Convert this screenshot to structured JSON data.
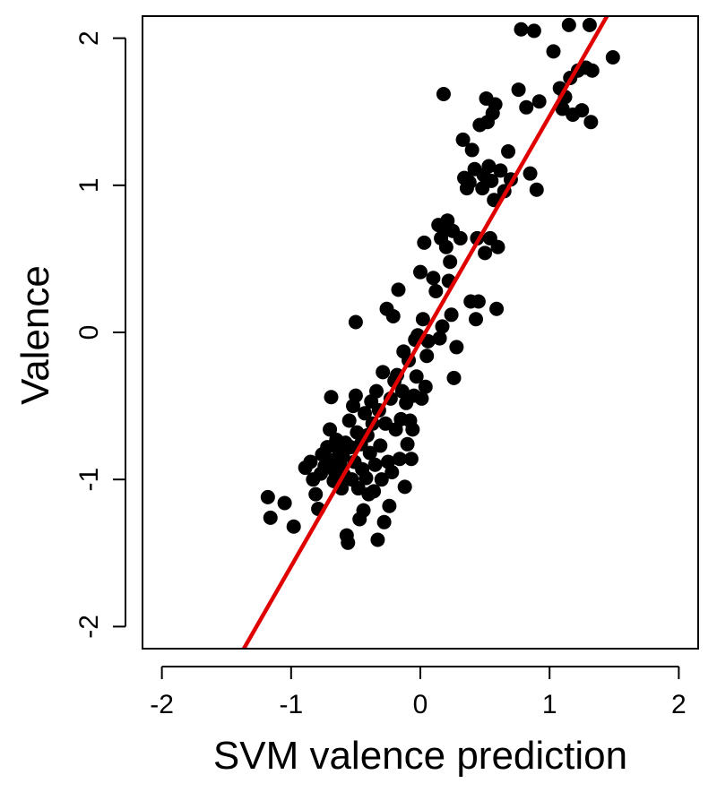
{
  "chart_data": {
    "type": "scatter",
    "xlabel": "SVM valence prediction",
    "ylabel": "Valence",
    "xlim": [
      -2.15,
      2.15
    ],
    "ylim": [
      -2.15,
      2.15
    ],
    "x_ticks": [
      -2,
      -1,
      0,
      1,
      2
    ],
    "y_ticks": [
      -2,
      -1,
      0,
      1,
      2
    ],
    "x_tick_labels": [
      "-2",
      "-1",
      "0",
      "1",
      "2"
    ],
    "y_tick_labels": [
      "-2",
      "-1",
      "0",
      "1",
      "2"
    ],
    "grid": false,
    "point_color": "#000000",
    "fit_line_color": "#e00000",
    "fit_line": {
      "slope": 1.53,
      "intercept": -0.06
    },
    "points": [
      {
        "x": -1.18,
        "y": -1.12
      },
      {
        "x": -1.16,
        "y": -1.26
      },
      {
        "x": -1.05,
        "y": -1.16
      },
      {
        "x": -0.98,
        "y": -1.32
      },
      {
        "x": -0.89,
        "y": -0.92
      },
      {
        "x": -0.85,
        "y": -0.88
      },
      {
        "x": -0.83,
        "y": -1.0
      },
      {
        "x": -0.81,
        "y": -1.1
      },
      {
        "x": -0.79,
        "y": -1.2
      },
      {
        "x": -0.77,
        "y": -0.96
      },
      {
        "x": -0.76,
        "y": -0.83
      },
      {
        "x": -0.74,
        "y": -0.91
      },
      {
        "x": -0.72,
        "y": -0.78
      },
      {
        "x": -0.7,
        "y": -0.66
      },
      {
        "x": -0.69,
        "y": -0.44
      },
      {
        "x": -0.68,
        "y": -0.87
      },
      {
        "x": -0.67,
        "y": -1.01
      },
      {
        "x": -0.66,
        "y": -0.95
      },
      {
        "x": -0.65,
        "y": -0.73
      },
      {
        "x": -0.63,
        "y": -0.8
      },
      {
        "x": -0.62,
        "y": -0.9
      },
      {
        "x": -0.61,
        "y": -1.06
      },
      {
        "x": -0.6,
        "y": -0.84
      },
      {
        "x": -0.59,
        "y": -0.97
      },
      {
        "x": -0.58,
        "y": -0.75
      },
      {
        "x": -0.57,
        "y": -1.38
      },
      {
        "x": -0.56,
        "y": -1.43
      },
      {
        "x": -0.55,
        "y": -0.6
      },
      {
        "x": -0.54,
        "y": -0.78
      },
      {
        "x": -0.53,
        "y": -1.0
      },
      {
        "x": -0.52,
        "y": -0.5
      },
      {
        "x": -0.51,
        "y": -0.88
      },
      {
        "x": -0.5,
        "y": 0.07
      },
      {
        "x": -0.5,
        "y": -0.43
      },
      {
        "x": -0.49,
        "y": -0.68
      },
      {
        "x": -0.48,
        "y": -1.06
      },
      {
        "x": -0.47,
        "y": -1.27
      },
      {
        "x": -0.46,
        "y": -0.76
      },
      {
        "x": -0.45,
        "y": -0.93
      },
      {
        "x": -0.44,
        "y": -1.21
      },
      {
        "x": -0.43,
        "y": -0.55
      },
      {
        "x": -0.42,
        "y": -0.99
      },
      {
        "x": -0.41,
        "y": -0.7
      },
      {
        "x": -0.4,
        "y": -1.1
      },
      {
        "x": -0.39,
        "y": -0.82
      },
      {
        "x": -0.38,
        "y": -0.47
      },
      {
        "x": -0.37,
        "y": -0.62
      },
      {
        "x": -0.36,
        "y": -1.08
      },
      {
        "x": -0.35,
        "y": -0.9
      },
      {
        "x": -0.34,
        "y": -0.4
      },
      {
        "x": -0.33,
        "y": -1.41
      },
      {
        "x": -0.32,
        "y": -0.53
      },
      {
        "x": -0.31,
        "y": -0.77
      },
      {
        "x": -0.3,
        "y": -1.0
      },
      {
        "x": -0.29,
        "y": -0.27
      },
      {
        "x": -0.28,
        "y": -1.29
      },
      {
        "x": -0.27,
        "y": -0.62
      },
      {
        "x": -0.26,
        "y": 0.16
      },
      {
        "x": -0.25,
        "y": -0.88
      },
      {
        "x": -0.24,
        "y": -1.18
      },
      {
        "x": -0.23,
        "y": -0.45
      },
      {
        "x": -0.22,
        "y": -0.95
      },
      {
        "x": -0.21,
        "y": 0.11
      },
      {
        "x": -0.2,
        "y": -0.33
      },
      {
        "x": -0.19,
        "y": -0.66
      },
      {
        "x": -0.18,
        "y": -0.29
      },
      {
        "x": -0.17,
        "y": 0.29
      },
      {
        "x": -0.16,
        "y": -0.86
      },
      {
        "x": -0.15,
        "y": -0.59
      },
      {
        "x": -0.14,
        "y": -0.4
      },
      {
        "x": -0.13,
        "y": -0.13
      },
      {
        "x": -0.12,
        "y": -1.05
      },
      {
        "x": -0.11,
        "y": -0.48
      },
      {
        "x": -0.1,
        "y": -0.76
      },
      {
        "x": -0.09,
        "y": -0.19
      },
      {
        "x": -0.08,
        "y": -0.6
      },
      {
        "x": -0.07,
        "y": -0.86
      },
      {
        "x": -0.06,
        "y": -0.66
      },
      {
        "x": -0.05,
        "y": -0.43
      },
      {
        "x": -0.04,
        "y": -0.05
      },
      {
        "x": -0.03,
        "y": -0.3
      },
      {
        "x": -0.02,
        "y": -0.02
      },
      {
        "x": 0.0,
        "y": 0.41
      },
      {
        "x": 0.01,
        "y": -0.45
      },
      {
        "x": 0.02,
        "y": 0.09
      },
      {
        "x": 0.03,
        "y": 0.61
      },
      {
        "x": 0.04,
        "y": -0.37
      },
      {
        "x": 0.05,
        "y": -0.16
      },
      {
        "x": 0.06,
        "y": -0.06
      },
      {
        "x": 0.1,
        "y": 0.37
      },
      {
        "x": 0.12,
        "y": 0.28
      },
      {
        "x": 0.14,
        "y": 0.73
      },
      {
        "x": 0.15,
        "y": -0.04
      },
      {
        "x": 0.16,
        "y": 0.64
      },
      {
        "x": 0.17,
        "y": 0.04
      },
      {
        "x": 0.18,
        "y": 1.62
      },
      {
        "x": 0.19,
        "y": 0.7
      },
      {
        "x": 0.2,
        "y": 0.58
      },
      {
        "x": 0.21,
        "y": 0.76
      },
      {
        "x": 0.22,
        "y": 0.35
      },
      {
        "x": 0.23,
        "y": 0.48
      },
      {
        "x": 0.24,
        "y": 0.12
      },
      {
        "x": 0.25,
        "y": 0.69
      },
      {
        "x": 0.26,
        "y": -0.31
      },
      {
        "x": 0.28,
        "y": -0.1
      },
      {
        "x": 0.31,
        "y": 0.64
      },
      {
        "x": 0.33,
        "y": 1.31
      },
      {
        "x": 0.34,
        "y": 1.05
      },
      {
        "x": 0.36,
        "y": 0.98
      },
      {
        "x": 0.38,
        "y": 1.02
      },
      {
        "x": 0.39,
        "y": 0.21
      },
      {
        "x": 0.4,
        "y": 1.24
      },
      {
        "x": 0.42,
        "y": 1.11
      },
      {
        "x": 0.43,
        "y": 0.09
      },
      {
        "x": 0.44,
        "y": 0.64
      },
      {
        "x": 0.45,
        "y": 0.21
      },
      {
        "x": 0.46,
        "y": 1.41
      },
      {
        "x": 0.48,
        "y": 0.98
      },
      {
        "x": 0.49,
        "y": 1.07
      },
      {
        "x": 0.5,
        "y": 0.54
      },
      {
        "x": 0.51,
        "y": 1.59
      },
      {
        "x": 0.52,
        "y": 1.43
      },
      {
        "x": 0.53,
        "y": 1.13
      },
      {
        "x": 0.54,
        "y": 0.64
      },
      {
        "x": 0.55,
        "y": 1.03
      },
      {
        "x": 0.56,
        "y": 1.49
      },
      {
        "x": 0.57,
        "y": 0.9
      },
      {
        "x": 0.58,
        "y": 1.55
      },
      {
        "x": 0.59,
        "y": 0.16
      },
      {
        "x": 0.6,
        "y": 0.58
      },
      {
        "x": 0.62,
        "y": 1.1
      },
      {
        "x": 0.65,
        "y": 0.96
      },
      {
        "x": 0.68,
        "y": 1.23
      },
      {
        "x": 0.7,
        "y": 1.04
      },
      {
        "x": 0.76,
        "y": 1.65
      },
      {
        "x": 0.78,
        "y": 2.06
      },
      {
        "x": 0.82,
        "y": 1.53
      },
      {
        "x": 0.85,
        "y": 1.08
      },
      {
        "x": 0.88,
        "y": 2.05
      },
      {
        "x": 0.9,
        "y": 0.97
      },
      {
        "x": 0.92,
        "y": 1.57
      },
      {
        "x": 1.03,
        "y": 1.91
      },
      {
        "x": 1.08,
        "y": 1.66
      },
      {
        "x": 1.1,
        "y": 1.52
      },
      {
        "x": 1.12,
        "y": 1.6
      },
      {
        "x": 1.15,
        "y": 2.09
      },
      {
        "x": 1.16,
        "y": 1.73
      },
      {
        "x": 1.18,
        "y": 1.48
      },
      {
        "x": 1.22,
        "y": 1.78
      },
      {
        "x": 1.25,
        "y": 1.51
      },
      {
        "x": 1.28,
        "y": 1.8
      },
      {
        "x": 1.31,
        "y": 2.09
      },
      {
        "x": 1.32,
        "y": 1.43
      },
      {
        "x": 1.33,
        "y": 1.78
      },
      {
        "x": 1.49,
        "y": 1.87
      }
    ]
  }
}
